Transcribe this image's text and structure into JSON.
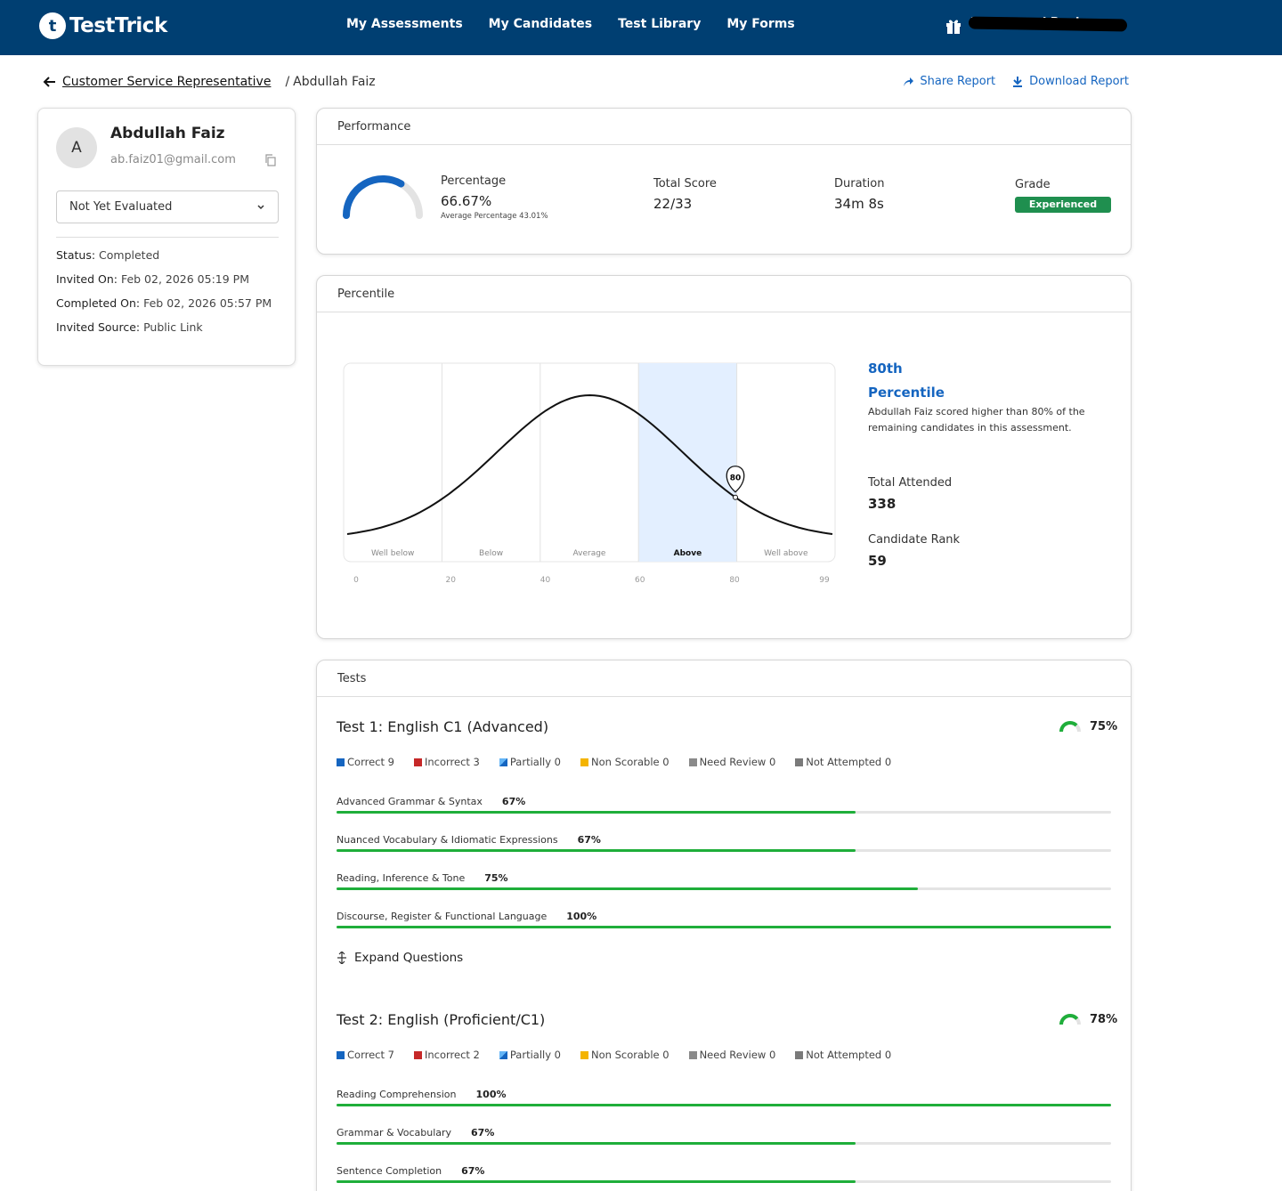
{
  "nav": {
    "logo_letter": "t",
    "logo_text": "TestTrick",
    "links": [
      "My Assessments",
      "My Candidates",
      "Test Library",
      "My Forms"
    ],
    "username": "Muhammad Ruaiy"
  },
  "breadcrumb": {
    "parent": "Customer Service Representative",
    "separator": "/",
    "current": "Abdullah Faiz"
  },
  "actions": {
    "share": "Share Report",
    "download": "Download Report"
  },
  "candidate": {
    "avatar_letter": "A",
    "name": "Abdullah Faiz",
    "email": "ab.faiz01@gmail.com",
    "evaluation": "Not Yet Evaluated",
    "meta": [
      {
        "key": "Status:",
        "value": "Completed"
      },
      {
        "key": "Invited On:",
        "value": "Feb 02, 2026 05:19 PM"
      },
      {
        "key": "Completed On:",
        "value": "Feb 02, 2026 05:57 PM"
      },
      {
        "key": "Invited Source:",
        "value": "Public Link"
      }
    ]
  },
  "performance": {
    "heading": "Performance",
    "percentage_label": "Percentage",
    "percentage": "66.67%",
    "percentage_fraction": 0.6667,
    "average_note": "Average Percentage 43.01%",
    "total_score_label": "Total Score",
    "total_score": "22/33",
    "duration_label": "Duration",
    "duration": "34m 8s",
    "grade_label": "Grade",
    "grade": "Experienced",
    "colors": {
      "gauge": "#1565c0",
      "grade": "#1f8f4f"
    }
  },
  "percentile": {
    "heading": "Percentile",
    "rank_line1": "80th",
    "rank_line2": "Percentile",
    "description": "Abdullah Faiz scored higher than 80% of the remaining candidates in this assessment.",
    "total_attended_label": "Total Attended",
    "total_attended": "338",
    "candidate_rank_label": "Candidate Rank",
    "candidate_rank": "59",
    "chart_data": {
      "type": "area",
      "bands": [
        "Well below",
        "Below",
        "Average",
        "Above",
        "Well above"
      ],
      "highlighted_band": "Above",
      "x_ticks": [
        0,
        20,
        40,
        60,
        80,
        99
      ],
      "marker_value": 80,
      "marker_label": "80",
      "xlim": [
        0,
        99
      ],
      "curve": "normal distribution",
      "colors": {
        "highlight": "#e3efff",
        "curve": "#111111"
      }
    }
  },
  "tests": {
    "heading": "Tests",
    "expand_label": "Expand Questions",
    "items": [
      {
        "title": "Test 1: English C1 (Advanced)",
        "score": "75%",
        "score_fraction": 0.75,
        "legend": [
          {
            "label": "Correct 9",
            "color": "#1565c0"
          },
          {
            "label": "Incorrect 3",
            "color": "#c62828"
          },
          {
            "label": "Partially 0",
            "color": "#1976d2"
          },
          {
            "label": "Non Scorable 0",
            "color": "#f4b400"
          },
          {
            "label": "Need Review 0",
            "color": "#8a8a8a"
          },
          {
            "label": "Not Attempted 0",
            "color": "#7a7a7a"
          }
        ],
        "skills": [
          {
            "name": "Advanced Grammar & Syntax",
            "pct": "67%",
            "value": 0.67
          },
          {
            "name": "Nuanced Vocabulary & Idiomatic Expressions",
            "pct": "67%",
            "value": 0.67
          },
          {
            "name": "Reading, Inference & Tone",
            "pct": "75%",
            "value": 0.75
          },
          {
            "name": "Discourse, Register & Functional Language",
            "pct": "100%",
            "value": 1.0
          }
        ]
      },
      {
        "title": "Test 2: English (Proficient/C1)",
        "score": "78%",
        "score_fraction": 0.78,
        "legend": [
          {
            "label": "Correct 7",
            "color": "#1565c0"
          },
          {
            "label": "Incorrect 2",
            "color": "#c62828"
          },
          {
            "label": "Partially 0",
            "color": "#1976d2"
          },
          {
            "label": "Non Scorable 0",
            "color": "#f4b400"
          },
          {
            "label": "Need Review 0",
            "color": "#8a8a8a"
          },
          {
            "label": "Not Attempted 0",
            "color": "#7a7a7a"
          }
        ],
        "skills": [
          {
            "name": "Reading Comprehension",
            "pct": "100%",
            "value": 1.0
          },
          {
            "name": "Grammar & Vocabulary",
            "pct": "67%",
            "value": 0.67
          },
          {
            "name": "Sentence Completion",
            "pct": "67%",
            "value": 0.67
          }
        ]
      }
    ]
  }
}
